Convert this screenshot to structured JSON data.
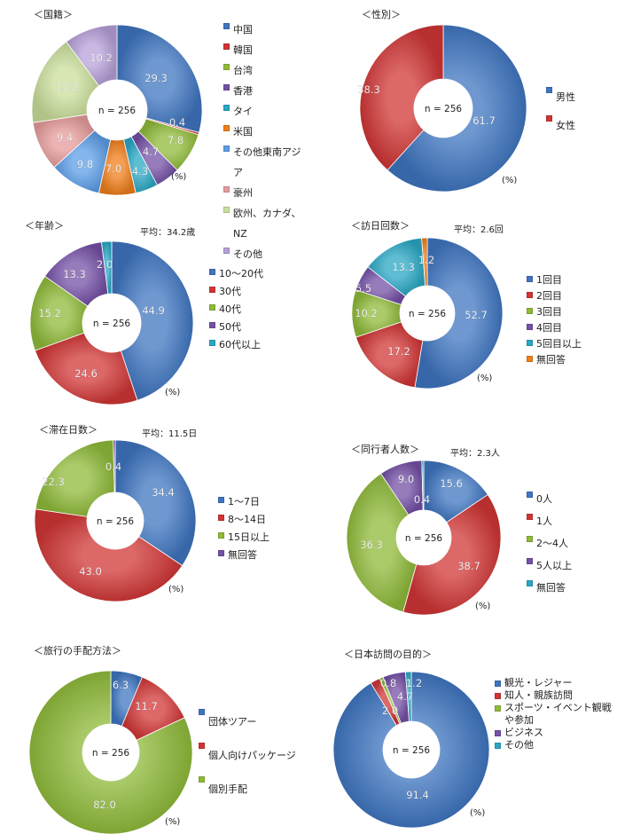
{
  "colors": {
    "blue": "#3f75c0",
    "red": "#d03535",
    "green": "#8fba3a",
    "purple": "#7450a6",
    "cyan": "#2aa7c4",
    "orange": "#ef7e1b",
    "lightblue": "#5c9de6",
    "pink": "#e49a9a",
    "lightgreen": "#c9de9a",
    "lavender": "#b6a0d8"
  },
  "chart_data": [
    {
      "id": "nationality",
      "type": "pie",
      "donut": true,
      "title": "＜国籍＞",
      "center_label": "n = 256",
      "unit": "(%)",
      "categories": [
        "中国",
        "韓国",
        "台湾",
        "香港",
        "タイ",
        "米国",
        "その他東南アジア",
        "豪州",
        "欧州、カナダ、NZ",
        "その他"
      ],
      "values": [
        29.3,
        0.4,
        7.8,
        4.7,
        4.3,
        7.0,
        9.8,
        9.4,
        17.2,
        10.2
      ],
      "labels": [
        "29.3",
        "0.4",
        "7.8",
        "4.7",
        "4.3",
        "7.0",
        "9.8",
        "9.4",
        "17.2",
        "10.2"
      ],
      "colors": [
        "blue",
        "red",
        "green",
        "purple",
        "cyan",
        "orange",
        "lightblue",
        "pink",
        "lightgreen",
        "lavender"
      ]
    },
    {
      "id": "gender",
      "type": "pie",
      "donut": true,
      "title": "＜性別＞",
      "center_label": "n = 256",
      "unit": "(%)",
      "categories": [
        "男性",
        "女性"
      ],
      "values": [
        61.7,
        38.3
      ],
      "labels": [
        "61.7",
        "38.3"
      ],
      "colors": [
        "blue",
        "red"
      ]
    },
    {
      "id": "age",
      "type": "pie",
      "donut": true,
      "title": "＜年齢＞",
      "average": "平均：34.2歳",
      "center_label": "n = 256",
      "unit": "(%)",
      "categories": [
        "10～20代",
        "30代",
        "40代",
        "50代",
        "60代以上"
      ],
      "values": [
        44.9,
        24.6,
        15.2,
        13.3,
        2.0
      ],
      "labels": [
        "44.9",
        "24.6",
        "15.2",
        "13.3",
        "2.0"
      ],
      "colors": [
        "blue",
        "red",
        "green",
        "purple",
        "cyan"
      ]
    },
    {
      "id": "visits",
      "type": "pie",
      "donut": true,
      "title": "＜訪日回数＞",
      "average": "平均：2.6回",
      "center_label": "n = 256",
      "unit": "(%)",
      "categories": [
        "1回目",
        "2回目",
        "3回目",
        "4回目",
        "5回目以上",
        "無回答"
      ],
      "values": [
        52.7,
        17.2,
        10.2,
        5.5,
        13.3,
        1.2
      ],
      "labels": [
        "52.7",
        "17.2",
        "10.2",
        "5.5",
        "13.3",
        "1.2"
      ],
      "colors": [
        "blue",
        "red",
        "green",
        "purple",
        "cyan",
        "orange"
      ]
    },
    {
      "id": "stay",
      "type": "pie",
      "donut": true,
      "title": "＜滞在日数＞",
      "average": "平均：11.5日",
      "center_label": "n = 256",
      "unit": "(%)",
      "categories": [
        "1～7日",
        "8～14日",
        "15日以上",
        "無回答"
      ],
      "values": [
        34.4,
        43.0,
        22.3,
        0.4
      ],
      "labels": [
        "34.4",
        "43.0",
        "22.3",
        "0.4"
      ],
      "colors": [
        "blue",
        "red",
        "green",
        "purple"
      ]
    },
    {
      "id": "companions",
      "type": "pie",
      "donut": true,
      "title": "＜同行者人数＞",
      "average": "平均：2.3人",
      "center_label": "n = 256",
      "unit": "(%)",
      "categories": [
        "0人",
        "1人",
        "2～4人",
        "5人以上",
        "無回答"
      ],
      "values": [
        15.6,
        38.7,
        36.3,
        9.0,
        0.4
      ],
      "labels": [
        "15.6",
        "38.7",
        "36.3",
        "9.0",
        "0.4"
      ],
      "colors": [
        "blue",
        "red",
        "green",
        "purple",
        "cyan"
      ]
    },
    {
      "id": "arrangement",
      "type": "pie",
      "donut": true,
      "title": "＜旅行の手配方法＞",
      "center_label": "n = 256",
      "unit": "(%)",
      "categories": [
        "団体ツアー",
        "個人向けパッケージ",
        "個別手配"
      ],
      "values": [
        6.3,
        11.7,
        82.0
      ],
      "labels": [
        "6.3",
        "11.7",
        "82.0"
      ],
      "colors": [
        "blue",
        "red",
        "green"
      ]
    },
    {
      "id": "purpose",
      "type": "pie",
      "donut": true,
      "title": "＜日本訪問の目的＞",
      "center_label": "n = 256",
      "unit": "(%)",
      "categories": [
        "観光・レジャー",
        "知人・親族訪問",
        "スポーツ・イベント観戦\nや参加",
        "ビジネス",
        "その他"
      ],
      "values": [
        91.4,
        2.0,
        0.8,
        4.7,
        1.2
      ],
      "labels": [
        "91.4",
        "2.0",
        "0.8",
        "4.7",
        "1.2"
      ],
      "colors": [
        "blue",
        "red",
        "green",
        "purple",
        "cyan"
      ]
    }
  ]
}
